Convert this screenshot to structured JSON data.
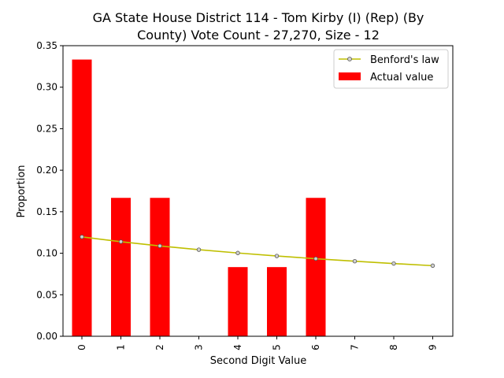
{
  "chart_data": {
    "type": "bar",
    "title_line1": "GA State House District 114 - Tom Kirby (I) (Rep) (By",
    "title_line2": "County) Vote Count - 27,270, Size - 12",
    "xlabel": "Second Digit Value",
    "ylabel": "Proportion",
    "categories": [
      "0",
      "1",
      "2",
      "3",
      "4",
      "5",
      "6",
      "7",
      "8",
      "9"
    ],
    "ylim": [
      0,
      0.35
    ],
    "yticks": [
      "0.00",
      "0.05",
      "0.10",
      "0.15",
      "0.20",
      "0.25",
      "0.30",
      "0.35"
    ],
    "series": [
      {
        "name": "Actual value",
        "kind": "bar",
        "color": "#ff0000",
        "values": [
          0.3333,
          0.1667,
          0.1667,
          0.0,
          0.0833,
          0.0833,
          0.1667,
          0.0,
          0.0,
          0.0
        ]
      },
      {
        "name": "Benford's law",
        "kind": "line",
        "color": "#bfbf00",
        "values": [
          0.1197,
          0.1139,
          0.1088,
          0.1043,
          0.1003,
          0.0967,
          0.0934,
          0.0904,
          0.0876,
          0.085
        ]
      }
    ],
    "legend": {
      "position": "top-right",
      "entries": [
        "Benford's law",
        "Actual value"
      ]
    },
    "grid": false
  }
}
